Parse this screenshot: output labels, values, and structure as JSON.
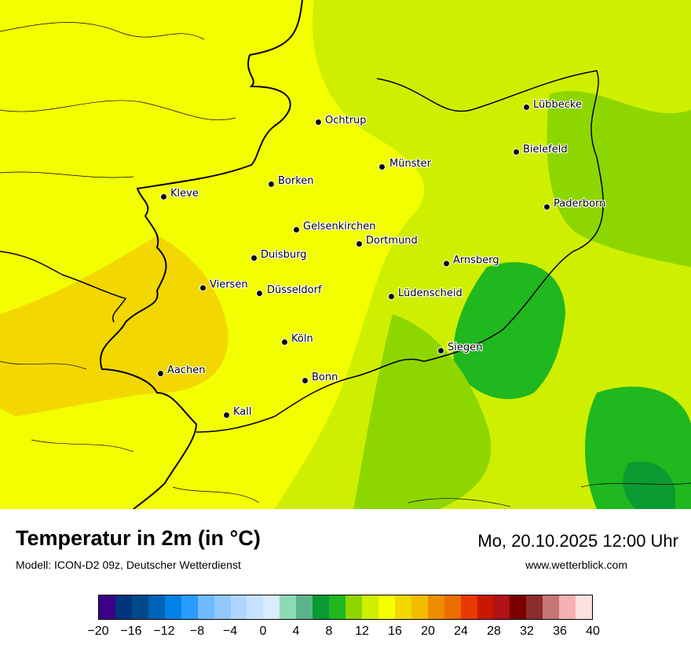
{
  "map": {
    "title": "Temperatur in 2m (in °C)",
    "model_info": "Modell: ICON-D2 09z, Deutscher Wetterdienst",
    "datetime": "Mo, 20.10.2025 12:00 Uhr",
    "website": "www.wetterblick.com",
    "cities": [
      {
        "name": "Lübbecke"
      },
      {
        "name": "Ochtrup"
      },
      {
        "name": "Bielefeld"
      },
      {
        "name": "Münster"
      },
      {
        "name": "Kleve"
      },
      {
        "name": "Borken"
      },
      {
        "name": "Paderborn"
      },
      {
        "name": "Gelsenkirchen"
      },
      {
        "name": "Dortmund"
      },
      {
        "name": "Duisburg"
      },
      {
        "name": "Arnsberg"
      },
      {
        "name": "Viersen"
      },
      {
        "name": "Düsseldorf"
      },
      {
        "name": "Lüdenscheid"
      },
      {
        "name": "Köln"
      },
      {
        "name": "Siegen"
      },
      {
        "name": "Aachen"
      },
      {
        "name": "Bonn"
      },
      {
        "name": "Kall"
      }
    ]
  },
  "legend": {
    "ticks": [
      "−20",
      "−16",
      "−12",
      "−8",
      "−4",
      "0",
      "4",
      "8",
      "12",
      "16",
      "20",
      "24",
      "28",
      "32",
      "36",
      "40"
    ],
    "colors": [
      "#3a0085",
      "#00347a",
      "#004a8c",
      "#0063b8",
      "#0082e6",
      "#2a9bff",
      "#6fbaff",
      "#93c8ff",
      "#b0d6ff",
      "#c6e2ff",
      "#d8ebff",
      "#8ddbb6",
      "#5cb58a",
      "#0a9a32",
      "#1fb81f",
      "#8ed600",
      "#cfef00",
      "#f3ff00",
      "#f2d700",
      "#f2bd00",
      "#f08c00",
      "#ee6c00",
      "#e83a00",
      "#c81800",
      "#b0121a",
      "#7a0000",
      "#8e2d2d",
      "#c77575",
      "#f5b0b0",
      "#fde0e0"
    ]
  }
}
